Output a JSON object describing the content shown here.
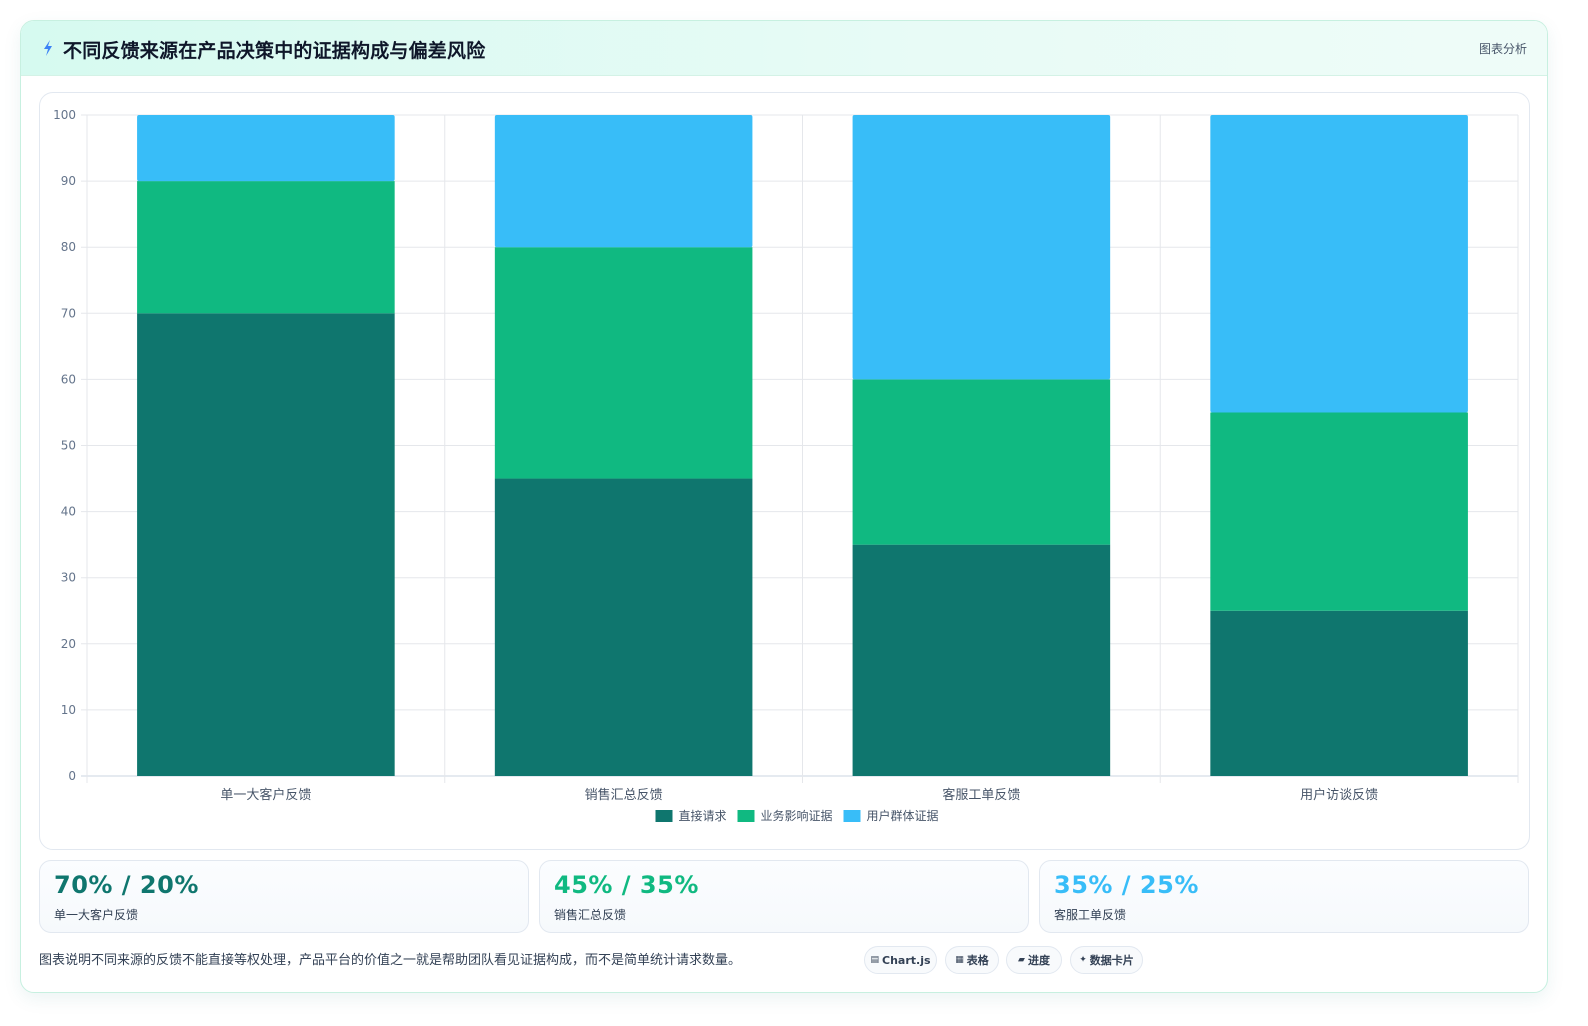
{
  "header": {
    "title": "不同反馈来源在产品决策中的证据构成与偏差风险",
    "tag": "图表分析",
    "icon": "lightning-icon"
  },
  "colors": {
    "direct": "#0f766e",
    "business": "#10b981",
    "population": "#38bdf8",
    "grid": "#e5e7eb",
    "tick": "#64748b"
  },
  "chart_data": {
    "type": "bar",
    "stacked": true,
    "categories": [
      "单一大客户反馈",
      "销售汇总反馈",
      "客服工单反馈",
      "用户访谈反馈"
    ],
    "series": [
      {
        "name": "直接请求",
        "values": [
          70,
          45,
          35,
          25
        ],
        "color": "#0f766e"
      },
      {
        "name": "业务影响证据",
        "values": [
          20,
          35,
          25,
          30
        ],
        "color": "#10b981"
      },
      {
        "name": "用户群体证据",
        "values": [
          10,
          20,
          40,
          45
        ],
        "color": "#38bdf8"
      }
    ],
    "ylim": [
      0,
      100
    ],
    "yticks": [
      0,
      10,
      20,
      30,
      40,
      50,
      60,
      70,
      80,
      90,
      100
    ],
    "grid": true,
    "legend": "bottom-center"
  },
  "stats": [
    {
      "value": "70% / 20%",
      "label": "单一大客户反馈",
      "color": "#0f766e"
    },
    {
      "value": "45% / 35%",
      "label": "销售汇总反馈",
      "color": "#10b981"
    },
    {
      "value": "35% / 25%",
      "label": "客服工单反馈",
      "color": "#38bdf8"
    }
  ],
  "footnote": "图表说明不同来源的反馈不能直接等权处理，产品平台的价值之一就是帮助团队看见证据构成，而不是简单统计请求数量。",
  "chips": [
    {
      "glyph": "▤",
      "label": "Chart.js",
      "icon": "chart-icon"
    },
    {
      "glyph": "▦",
      "label": "表格",
      "icon": "table-icon"
    },
    {
      "glyph": "▰",
      "label": "进度",
      "icon": "progress-icon"
    },
    {
      "glyph": "✦",
      "label": "数据卡片",
      "icon": "sparkle-icon"
    }
  ]
}
